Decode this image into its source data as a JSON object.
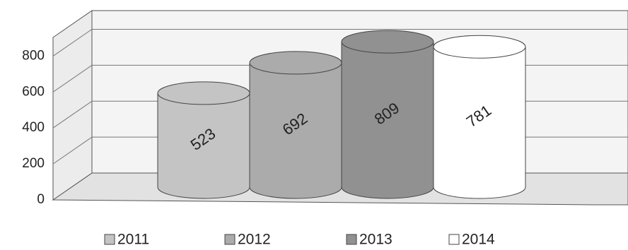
{
  "chart_data": {
    "type": "bar",
    "series": [
      {
        "name": "2011",
        "color": "#c4c4c4",
        "values": [
          523
        ]
      },
      {
        "name": "2012",
        "color": "#ababab",
        "values": [
          692
        ]
      },
      {
        "name": "2013",
        "color": "#919191",
        "values": [
          809
        ]
      },
      {
        "name": "2014",
        "color": "#ffffff",
        "values": [
          781
        ]
      }
    ],
    "ylim": [
      0,
      900
    ],
    "yticks": [
      0,
      200,
      400,
      600,
      800
    ],
    "grid": true,
    "legend": "bottom"
  }
}
